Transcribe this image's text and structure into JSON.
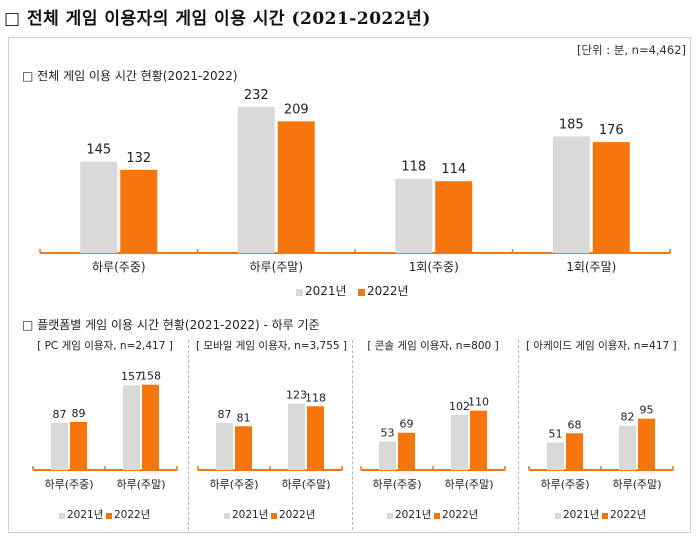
{
  "page": {
    "title": "□ 전체 게임 이용자의 게임 이용 시간 (2021-2022년)",
    "unit_note": "[단위 : 분, n=4,462]"
  },
  "colors": {
    "y2021": "#d9d9d9",
    "y2022": "#f7750d",
    "axis": "#f7750d"
  },
  "legend": {
    "y2021": "2021년",
    "y2022": "2022년"
  },
  "chart_data": [
    {
      "type": "bar",
      "title": "□ 전체 게임 이용 시간 현황(2021-2022)",
      "xlabel": "",
      "ylabel": "",
      "categories": [
        "하루(주중)",
        "하루(주말)",
        "1회(주중)",
        "1회(주말)"
      ],
      "series": [
        {
          "name": "2021년",
          "values": [
            145,
            232,
            118,
            185
          ]
        },
        {
          "name": "2022년",
          "values": [
            132,
            209,
            114,
            176
          ]
        }
      ],
      "grid": false,
      "legend_position": "bottom-center"
    },
    {
      "type": "bar",
      "section_title": "□ 플랫폼별 게임 이용 시간 현황(2021-2022) - 하루 기준",
      "title": "[ PC 게임 이용자, n=2,417 ]",
      "categories": [
        "하루(주중)",
        "하루(주말)"
      ],
      "series": [
        {
          "name": "2021년",
          "values": [
            87,
            157
          ]
        },
        {
          "name": "2022년",
          "values": [
            89,
            158
          ]
        }
      ],
      "grid": false,
      "legend_position": "bottom-center"
    },
    {
      "type": "bar",
      "title": "[ 모바일 게임 이용자, n=3,755 ]",
      "categories": [
        "하루(주중)",
        "하루(주말)"
      ],
      "series": [
        {
          "name": "2021년",
          "values": [
            87,
            123
          ]
        },
        {
          "name": "2022년",
          "values": [
            81,
            118
          ]
        }
      ],
      "grid": false,
      "legend_position": "bottom-center"
    },
    {
      "type": "bar",
      "title": "[ 콘솔 게임 이용자, n=800 ]",
      "categories": [
        "하루(주중)",
        "하루(주말)"
      ],
      "series": [
        {
          "name": "2021년",
          "values": [
            53,
            102
          ]
        },
        {
          "name": "2022년",
          "values": [
            69,
            110
          ]
        }
      ],
      "grid": false,
      "legend_position": "bottom-center"
    },
    {
      "type": "bar",
      "title": "[ 아케이드 게임 이용자, n=417 ]",
      "categories": [
        "하루(주중)",
        "하루(주말)"
      ],
      "series": [
        {
          "name": "2021년",
          "values": [
            51,
            82
          ]
        },
        {
          "name": "2022년",
          "values": [
            68,
            95
          ]
        }
      ],
      "grid": false,
      "legend_position": "bottom-center"
    }
  ]
}
